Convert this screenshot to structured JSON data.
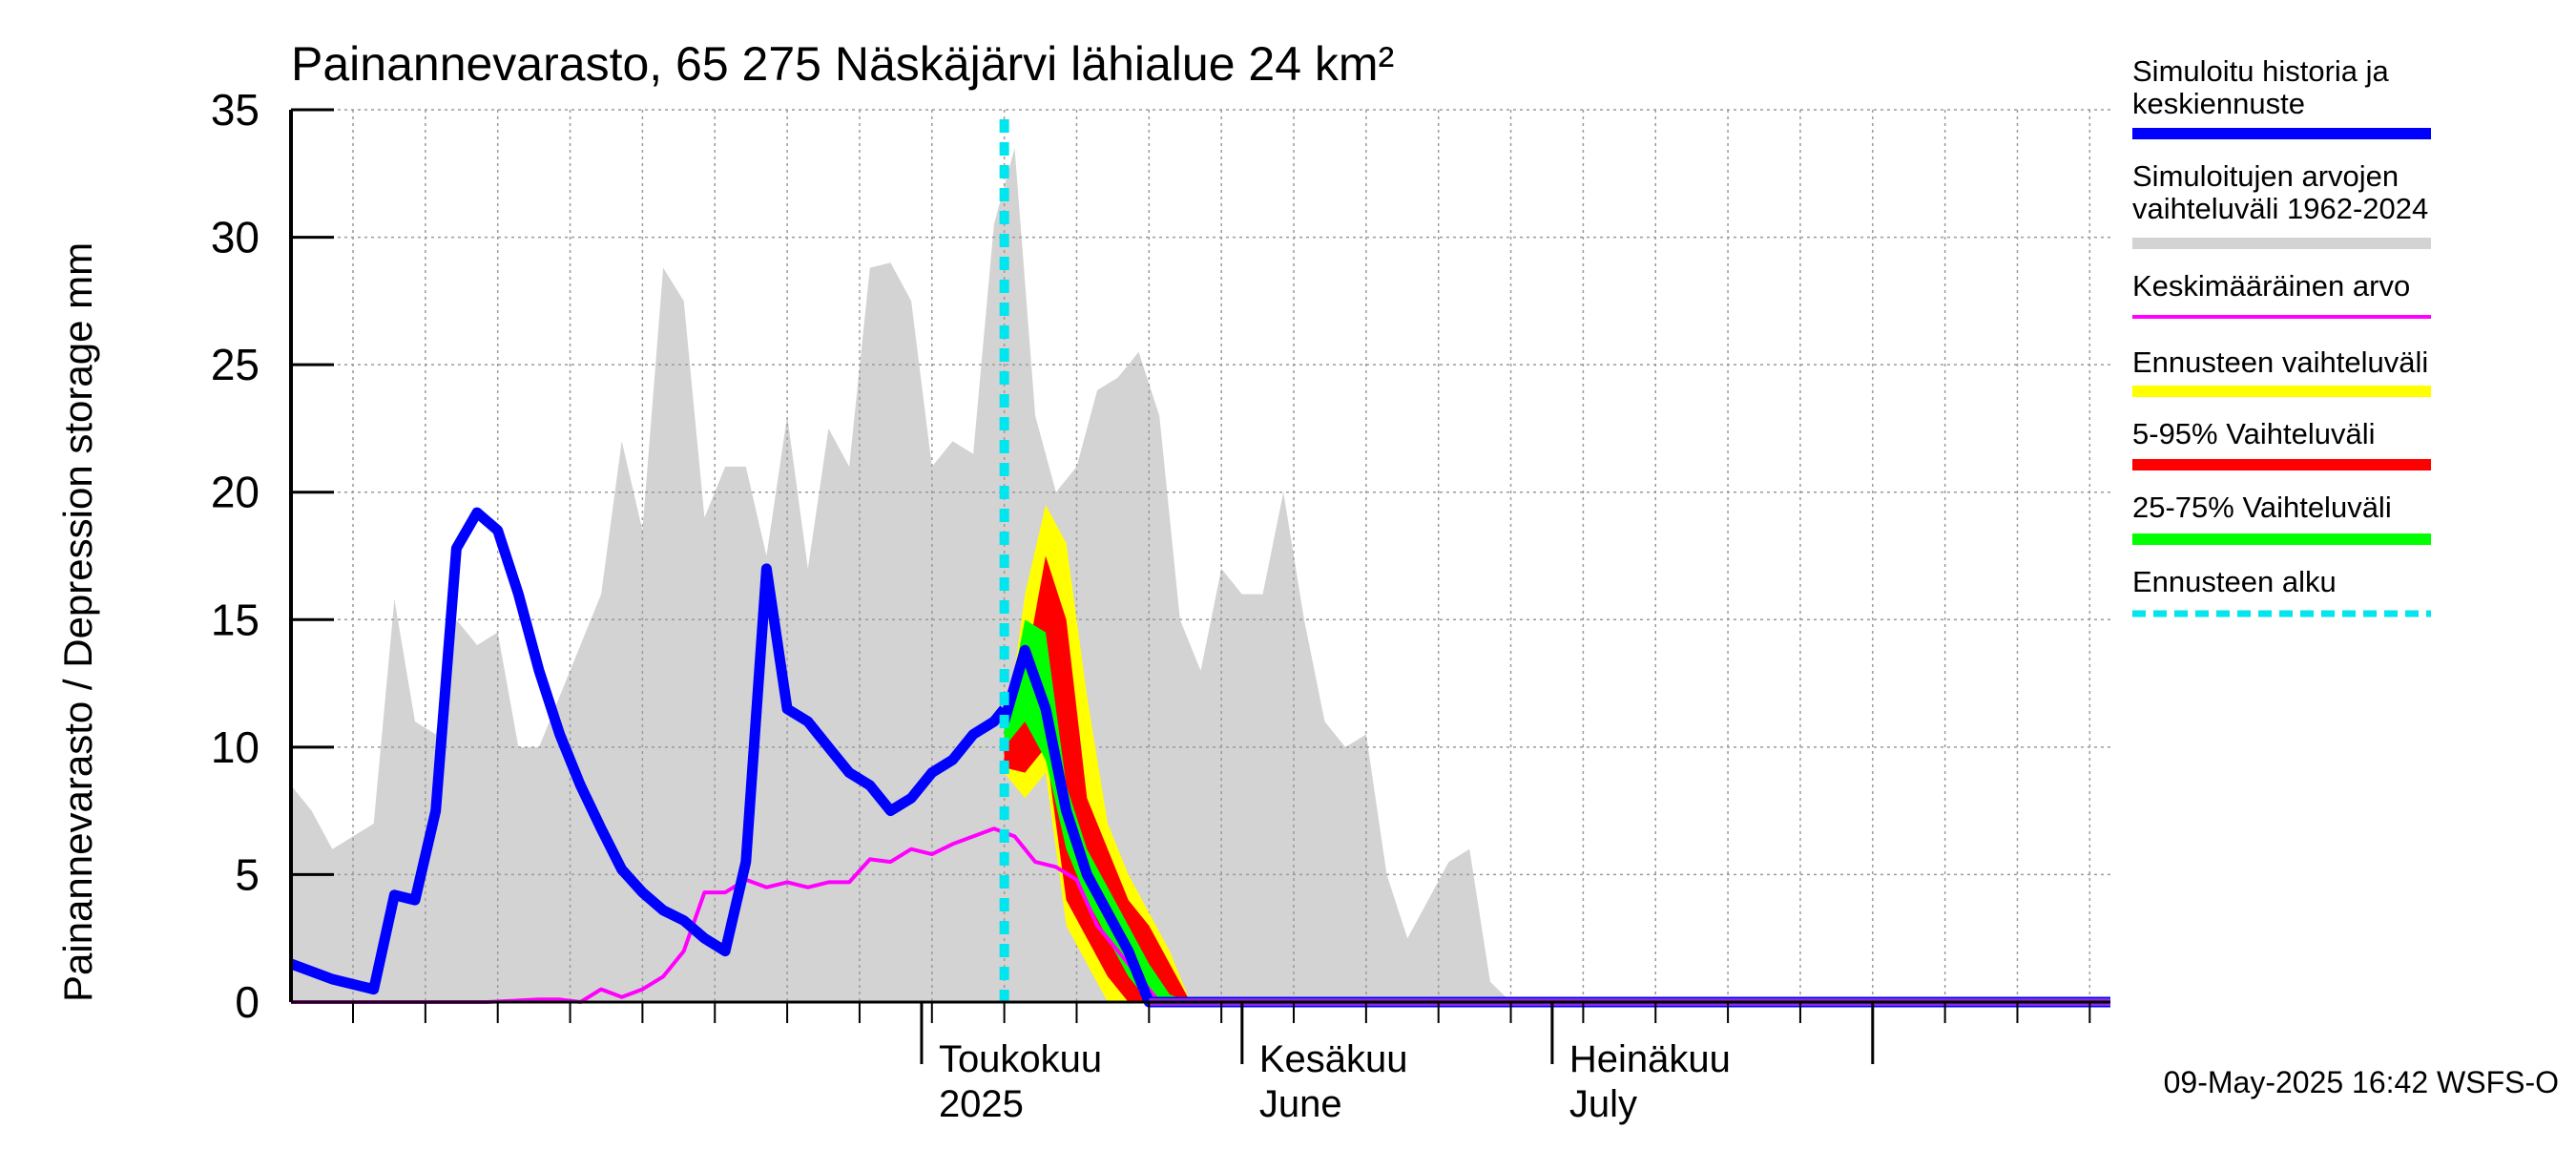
{
  "chart_data": {
    "type": "area",
    "title": "Painannevarasto, 65 275 Näskäjärvi lähialue 24 km²",
    "ylabel": "Painannevarasto / Depression storage    mm",
    "ylim": [
      0,
      35
    ],
    "yticks": [
      0,
      5,
      10,
      15,
      20,
      25,
      30,
      35
    ],
    "xlim": [
      "2025-03-01",
      "2025-08-24"
    ],
    "grid": true,
    "month_labels": [
      {
        "date": "2025-05-01",
        "line1": "Toukokuu",
        "line2": "2025"
      },
      {
        "date": "2025-06-01",
        "line1": "Kesäkuu",
        "line2": "June"
      },
      {
        "date": "2025-07-01",
        "line1": "Heinäkuu",
        "line2": "July"
      }
    ],
    "forecast_start": "2025-05-09",
    "legend": [
      {
        "label": "Simuloitu historia ja keskiennuste",
        "color": "#0000ff"
      },
      {
        "label": "Simuloitujen arvojen vaihteluväli 1962-2024",
        "color": "#d3d3d3"
      },
      {
        "label": "Keskimääräinen arvo",
        "color": "#ff00ff"
      },
      {
        "label": "Ennusteen vaihteluväli",
        "color": "#ffff00"
      },
      {
        "label": "5-95% Vaihteluväli",
        "color": "#ff0000"
      },
      {
        "label": "25-75% Vaihteluväli",
        "color": "#00ff00"
      },
      {
        "label": "Ennusteen alku",
        "color": "#00e5ee"
      }
    ],
    "footer": "09-May-2025 16:42 WSFS-O",
    "series": {
      "hist_range_upper": {
        "x": [
          "2025-03-01",
          "2025-03-03",
          "2025-03-05",
          "2025-03-07",
          "2025-03-09",
          "2025-03-11",
          "2025-03-13",
          "2025-03-15",
          "2025-03-17",
          "2025-03-19",
          "2025-03-21",
          "2025-03-23",
          "2025-03-25",
          "2025-03-27",
          "2025-03-29",
          "2025-03-31",
          "2025-04-02",
          "2025-04-04",
          "2025-04-06",
          "2025-04-08",
          "2025-04-10",
          "2025-04-12",
          "2025-04-14",
          "2025-04-16",
          "2025-04-18",
          "2025-04-20",
          "2025-04-22",
          "2025-04-24",
          "2025-04-26",
          "2025-04-28",
          "2025-04-30",
          "2025-05-02",
          "2025-05-04",
          "2025-05-06",
          "2025-05-08",
          "2025-05-10",
          "2025-05-12",
          "2025-05-14",
          "2025-05-16",
          "2025-05-18",
          "2025-05-20",
          "2025-05-22",
          "2025-05-24",
          "2025-05-26",
          "2025-05-28",
          "2025-05-30",
          "2025-06-01",
          "2025-06-03",
          "2025-06-05",
          "2025-06-07",
          "2025-06-09",
          "2025-06-11",
          "2025-06-13",
          "2025-06-15",
          "2025-06-17",
          "2025-06-19",
          "2025-06-21",
          "2025-06-23",
          "2025-06-25",
          "2025-06-27",
          "2025-06-29",
          "2025-07-01",
          "2025-07-15",
          "2025-08-01",
          "2025-08-24"
        ],
        "y": [
          8.5,
          7.5,
          6,
          6.5,
          7,
          15.8,
          11,
          10.5,
          15,
          14,
          14.5,
          10,
          10,
          12,
          14,
          16,
          22,
          18.5,
          28.8,
          27.5,
          19,
          21,
          21,
          17.5,
          23,
          17,
          22.5,
          21,
          28.8,
          29,
          27.5,
          21,
          22,
          21.5,
          30.5,
          33.5,
          23,
          20,
          21,
          24,
          24.5,
          25.5,
          23,
          15,
          13,
          17,
          16,
          16,
          20,
          15,
          11,
          10,
          10.5,
          5,
          2.5,
          4,
          5.5,
          6,
          0.8,
          0,
          0,
          0,
          0,
          0,
          0
        ]
      },
      "simulated_history": {
        "x": [
          "2025-03-01",
          "2025-03-05",
          "2025-03-09",
          "2025-03-11",
          "2025-03-13",
          "2025-03-15",
          "2025-03-17",
          "2025-03-19",
          "2025-03-21",
          "2025-03-23",
          "2025-03-25",
          "2025-03-27",
          "2025-03-29",
          "2025-03-31",
          "2025-04-02",
          "2025-04-04",
          "2025-04-06",
          "2025-04-08",
          "2025-04-10",
          "2025-04-12",
          "2025-04-14",
          "2025-04-16",
          "2025-04-18",
          "2025-04-20",
          "2025-04-22",
          "2025-04-24",
          "2025-04-26",
          "2025-04-28",
          "2025-04-30",
          "2025-05-02",
          "2025-05-04",
          "2025-05-06",
          "2025-05-08",
          "2025-05-09"
        ],
        "y": [
          1.5,
          0.9,
          0.5,
          4.2,
          4,
          7.5,
          17.8,
          19.2,
          18.5,
          16,
          13,
          10.5,
          8.5,
          6.8,
          5.2,
          4.3,
          3.6,
          3.2,
          2.5,
          2,
          5.5,
          17,
          11.5,
          11,
          10,
          9,
          8.5,
          7.5,
          8,
          9,
          9.5,
          10.5,
          11,
          11.5
        ]
      },
      "mean_forecast": {
        "x": [
          "2025-05-09",
          "2025-05-11",
          "2025-05-13",
          "2025-05-15",
          "2025-05-17",
          "2025-05-19",
          "2025-05-21",
          "2025-05-23",
          "2025-05-25",
          "2025-05-27",
          "2025-08-24"
        ],
        "y": [
          11,
          13.8,
          11.5,
          7.5,
          5,
          3.5,
          2,
          0,
          0,
          0,
          0
        ]
      },
      "mean_value": {
        "x": [
          "2025-03-01",
          "2025-03-20",
          "2025-03-25",
          "2025-03-27",
          "2025-03-29",
          "2025-03-31",
          "2025-04-02",
          "2025-04-04",
          "2025-04-06",
          "2025-04-08",
          "2025-04-10",
          "2025-04-12",
          "2025-04-14",
          "2025-04-16",
          "2025-04-18",
          "2025-04-20",
          "2025-04-22",
          "2025-04-24",
          "2025-04-26",
          "2025-04-28",
          "2025-04-30",
          "2025-05-02",
          "2025-05-04",
          "2025-05-06",
          "2025-05-08",
          "2025-05-10",
          "2025-05-12",
          "2025-05-14",
          "2025-05-16",
          "2025-05-18",
          "2025-05-20",
          "2025-05-22",
          "2025-05-24",
          "2025-05-26",
          "2025-08-24"
        ],
        "y": [
          0,
          0,
          0.1,
          0.1,
          0,
          0.5,
          0.2,
          0.5,
          1,
          2,
          4.3,
          4.3,
          4.8,
          4.5,
          4.7,
          4.5,
          4.7,
          4.7,
          5.6,
          5.5,
          6,
          5.8,
          6.2,
          6.5,
          6.8,
          6.5,
          5.5,
          5.3,
          4.8,
          3,
          2,
          1,
          0,
          0,
          0
        ]
      },
      "forecast_range": {
        "x": [
          "2025-05-09",
          "2025-05-11",
          "2025-05-13",
          "2025-05-15",
          "2025-05-17",
          "2025-05-19",
          "2025-05-21",
          "2025-05-23",
          "2025-05-25",
          "2025-05-27",
          "2025-05-29"
        ],
        "lower": [
          9,
          8,
          9,
          3,
          1.5,
          0,
          0,
          0,
          0,
          0,
          0
        ],
        "upper": [
          10,
          16,
          19.5,
          18,
          12,
          7,
          5,
          3.5,
          2,
          0,
          0
        ]
      },
      "p5_95_range": {
        "x": [
          "2025-05-09",
          "2025-05-11",
          "2025-05-13",
          "2025-05-15",
          "2025-05-17",
          "2025-05-19",
          "2025-05-21",
          "2025-05-23",
          "2025-05-25",
          "2025-05-27",
          "2025-05-29"
        ],
        "lower": [
          9.2,
          9,
          10,
          4,
          2.5,
          1,
          0,
          0,
          0,
          0,
          0
        ],
        "upper": [
          10,
          13,
          17.5,
          15,
          8,
          6,
          4,
          3,
          1.5,
          0,
          0
        ]
      },
      "p25_75_range": {
        "x": [
          "2025-05-09",
          "2025-05-11",
          "2025-05-13",
          "2025-05-15",
          "2025-05-17",
          "2025-05-19",
          "2025-05-21",
          "2025-05-23",
          "2025-05-25",
          "2025-05-27"
        ],
        "lower": [
          10,
          11,
          9.5,
          6,
          4,
          2.5,
          1,
          0,
          0,
          0
        ],
        "upper": [
          10.8,
          15,
          14.5,
          8.5,
          6,
          4.5,
          3,
          1.5,
          0.3,
          0
        ]
      }
    }
  }
}
